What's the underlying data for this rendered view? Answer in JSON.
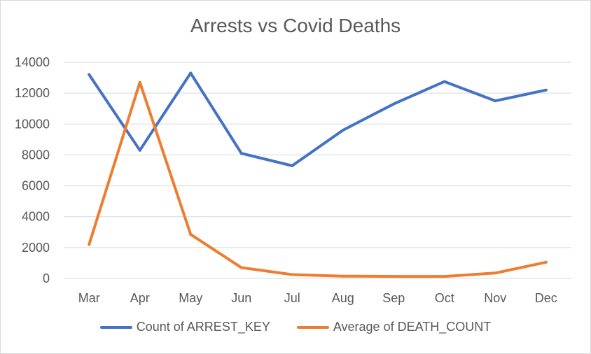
{
  "chart_data": {
    "type": "line",
    "title": "Arrests vs Covid Deaths",
    "categories": [
      "Mar",
      "Apr",
      "May",
      "Jun",
      "Jul",
      "Aug",
      "Sep",
      "Oct",
      "Nov",
      "Dec"
    ],
    "series": [
      {
        "name": "Count of ARREST_KEY",
        "color": "#4472c4",
        "values": [
          13200,
          8300,
          13300,
          8100,
          7300,
          9600,
          11300,
          12750,
          11500,
          12200
        ]
      },
      {
        "name": "Average of DEATH_COUNT",
        "color": "#ed7d31",
        "values": [
          2200,
          12700,
          2850,
          700,
          250,
          150,
          130,
          130,
          350,
          1050
        ]
      }
    ],
    "ylim": [
      0,
      14000
    ],
    "yticks": [
      0,
      2000,
      4000,
      6000,
      8000,
      10000,
      12000,
      14000
    ],
    "grid": true,
    "legend_position": "bottom"
  }
}
